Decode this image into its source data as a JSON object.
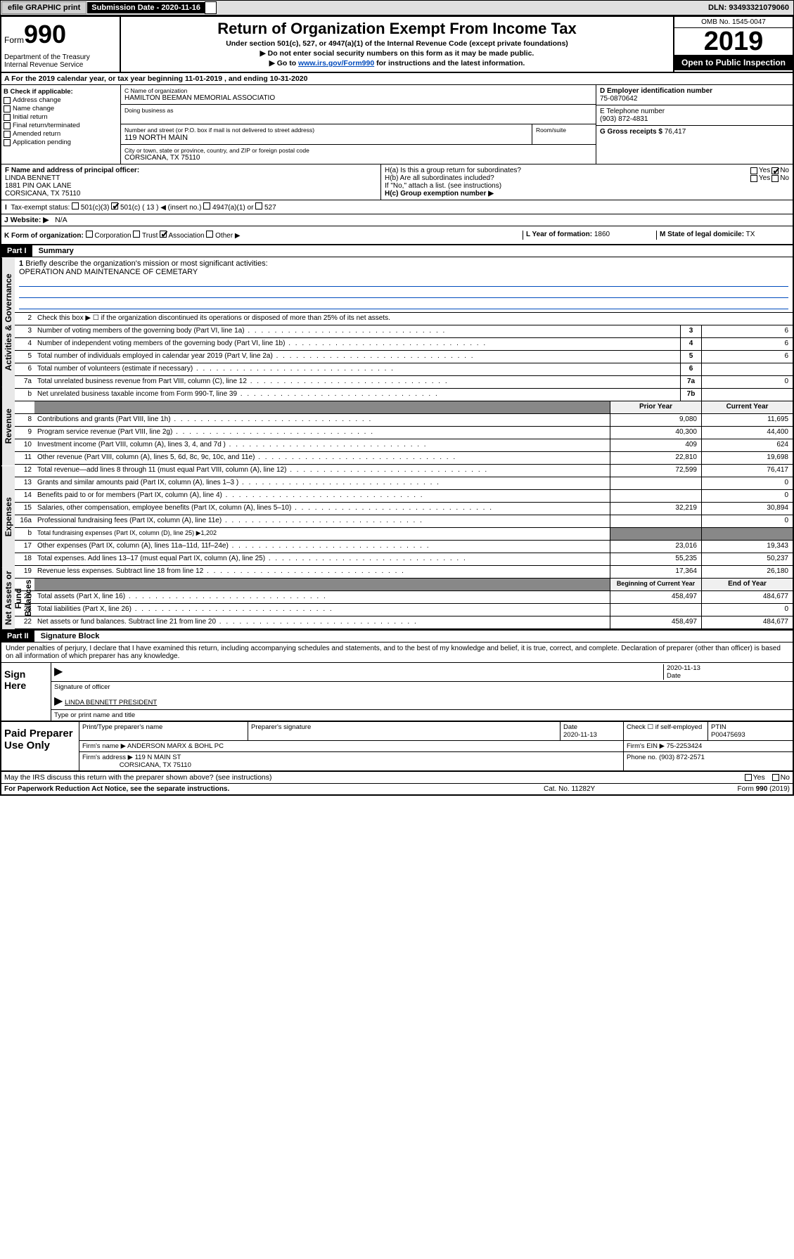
{
  "topbar": {
    "efile": "efile GRAPHIC print",
    "sub_date_label": "Submission Date - 2020-11-16",
    "dln": "DLN: 93493321079060"
  },
  "header": {
    "form_label": "Form",
    "form_number": "990",
    "dept": "Department of the Treasury\nInternal Revenue Service",
    "title": "Return of Organization Exempt From Income Tax",
    "subtitle1": "Under section 501(c), 527, or 4947(a)(1) of the Internal Revenue Code (except private foundations)",
    "subtitle2": "▶ Do not enter social security numbers on this form as it may be made public.",
    "subtitle3_pre": "▶ Go to ",
    "subtitle3_link": "www.irs.gov/Form990",
    "subtitle3_post": " for instructions and the latest information.",
    "omb": "OMB No. 1545-0047",
    "year": "2019",
    "open_public": "Open to Public Inspection"
  },
  "rowA": "A For the 2019 calendar year, or tax year beginning 11-01-2019     , and ending 10-31-2020",
  "sectionB": {
    "label": "B Check if applicable:",
    "items": [
      "Address change",
      "Name change",
      "Initial return",
      "Final return/terminated",
      "Amended return",
      "Application pending"
    ]
  },
  "sectionC": {
    "name_label": "C Name of organization",
    "name": "HAMILTON BEEMAN MEMORIAL ASSOCIATIO",
    "dba_label": "Doing business as",
    "addr_label": "Number and street (or P.O. box if mail is not delivered to street address)",
    "room_label": "Room/suite",
    "addr": "119 NORTH MAIN",
    "city_label": "City or town, state or province, country, and ZIP or foreign postal code",
    "city": "CORSICANA, TX  75110"
  },
  "sectionD": {
    "label": "D Employer identification number",
    "value": "75-0870642"
  },
  "sectionE": {
    "label": "E Telephone number",
    "value": "(903) 872-4831"
  },
  "sectionG": {
    "label": "G Gross receipts $",
    "value": "76,417"
  },
  "sectionF": {
    "label": "F Name and address of principal officer:",
    "name": "LINDA BENNETT",
    "addr1": "1881 PIN OAK LANE",
    "addr2": "CORSICANA, TX  75110"
  },
  "sectionH": {
    "ha": "H(a)  Is this a group return for subordinates?",
    "hb": "H(b)  Are all subordinates included?",
    "hb_note": "If \"No,\" attach a list. (see instructions)",
    "hc": "H(c)  Group exemption number ▶"
  },
  "rowI": {
    "label": "Tax-exempt status:",
    "opt1": "501(c)(3)",
    "opt2": "501(c) ( 13 ) ◀ (insert no.)",
    "opt3": "4947(a)(1) or",
    "opt4": "527"
  },
  "rowJ": {
    "label": "J  Website: ▶",
    "value": "N/A"
  },
  "rowK": {
    "label": "K Form of organization:",
    "opts": [
      "Corporation",
      "Trust",
      "Association",
      "Other ▶"
    ],
    "checked": 2
  },
  "rowL": {
    "label": "L Year of formation:",
    "value": "1860"
  },
  "rowM": {
    "label": "M State of legal domicile:",
    "value": "TX"
  },
  "partI": {
    "header": "Part I",
    "title": "Summary"
  },
  "summary": {
    "sections": [
      {
        "label": "Activities & Governance",
        "rows_idx": [
          0,
          1,
          2,
          3,
          4,
          5,
          6,
          7
        ]
      },
      {
        "label": "Revenue",
        "rows_idx": [
          8,
          9,
          10,
          11,
          12,
          13
        ]
      },
      {
        "label": "Expenses",
        "rows_idx": [
          14,
          15,
          16,
          17,
          18,
          19,
          20
        ]
      },
      {
        "label": "Net Assets or Fund Balances",
        "rows_idx": [
          21,
          22,
          23,
          24
        ]
      }
    ],
    "q1": {
      "num": "1",
      "text": "Briefly describe the organization's mission or most significant activities:",
      "answer": "OPERATION AND MAINTENANCE OF CEMETARY"
    },
    "q2": {
      "num": "2",
      "text": "Check this box ▶ ☐ if the organization discontinued its operations or disposed of more than 25% of its net assets."
    },
    "lines": [
      {
        "num": "3",
        "text": "Number of voting members of the governing body (Part VI, line 1a)",
        "box": "3",
        "val": "6"
      },
      {
        "num": "4",
        "text": "Number of independent voting members of the governing body (Part VI, line 1b)",
        "box": "4",
        "val": "6"
      },
      {
        "num": "5",
        "text": "Total number of individuals employed in calendar year 2019 (Part V, line 2a)",
        "box": "5",
        "val": "6"
      },
      {
        "num": "6",
        "text": "Total number of volunteers (estimate if necessary)",
        "box": "6",
        "val": ""
      },
      {
        "num": "7a",
        "text": "Total unrelated business revenue from Part VIII, column (C), line 12",
        "box": "7a",
        "val": "0"
      },
      {
        "num": "b",
        "text": "Net unrelated business taxable income from Form 990-T, line 39",
        "box": "7b",
        "val": ""
      }
    ],
    "header_prior": "Prior Year",
    "header_current": "Current Year",
    "revenue": [
      {
        "num": "8",
        "text": "Contributions and grants (Part VIII, line 1h)",
        "prior": "9,080",
        "curr": "11,695"
      },
      {
        "num": "9",
        "text": "Program service revenue (Part VIII, line 2g)",
        "prior": "40,300",
        "curr": "44,400"
      },
      {
        "num": "10",
        "text": "Investment income (Part VIII, column (A), lines 3, 4, and 7d )",
        "prior": "409",
        "curr": "624"
      },
      {
        "num": "11",
        "text": "Other revenue (Part VIII, column (A), lines 5, 6d, 8c, 9c, 10c, and 11e)",
        "prior": "22,810",
        "curr": "19,698"
      },
      {
        "num": "12",
        "text": "Total revenue—add lines 8 through 11 (must equal Part VIII, column (A), line 12)",
        "prior": "72,599",
        "curr": "76,417"
      }
    ],
    "expenses": [
      {
        "num": "13",
        "text": "Grants and similar amounts paid (Part IX, column (A), lines 1–3 )",
        "prior": "",
        "curr": "0"
      },
      {
        "num": "14",
        "text": "Benefits paid to or for members (Part IX, column (A), line 4)",
        "prior": "",
        "curr": "0"
      },
      {
        "num": "15",
        "text": "Salaries, other compensation, employee benefits (Part IX, column (A), lines 5–10)",
        "prior": "32,219",
        "curr": "30,894"
      },
      {
        "num": "16a",
        "text": "Professional fundraising fees (Part IX, column (A), line 11e)",
        "prior": "",
        "curr": "0"
      },
      {
        "num": "b",
        "text": "Total fundraising expenses (Part IX, column (D), line 25) ▶1,202",
        "prior": null,
        "curr": null,
        "shaded": true
      },
      {
        "num": "17",
        "text": "Other expenses (Part IX, column (A), lines 11a–11d, 11f–24e)",
        "prior": "23,016",
        "curr": "19,343"
      },
      {
        "num": "18",
        "text": "Total expenses. Add lines 13–17 (must equal Part IX, column (A), line 25)",
        "prior": "55,235",
        "curr": "50,237"
      },
      {
        "num": "19",
        "text": "Revenue less expenses. Subtract line 18 from line 12",
        "prior": "17,364",
        "curr": "26,180"
      }
    ],
    "header_begin": "Beginning of Current Year",
    "header_end": "End of Year",
    "netassets": [
      {
        "num": "20",
        "text": "Total assets (Part X, line 16)",
        "prior": "458,497",
        "curr": "484,677"
      },
      {
        "num": "21",
        "text": "Total liabilities (Part X, line 26)",
        "prior": "",
        "curr": "0"
      },
      {
        "num": "22",
        "text": "Net assets or fund balances. Subtract line 21 from line 20",
        "prior": "458,497",
        "curr": "484,677"
      }
    ]
  },
  "partII": {
    "header": "Part II",
    "title": "Signature Block"
  },
  "perjury": "Under penalties of perjury, I declare that I have examined this return, including accompanying schedules and statements, and to the best of my knowledge and belief, it is true, correct, and complete. Declaration of preparer (other than officer) is based on all information of which preparer has any knowledge.",
  "sign": {
    "label": "Sign Here",
    "sig_officer": "Signature of officer",
    "date": "2020-11-13",
    "date_label": "Date",
    "name": "LINDA BENNETT PRESIDENT",
    "name_label": "Type or print name and title"
  },
  "paid": {
    "label": "Paid Preparer Use Only",
    "headers": [
      "Print/Type preparer's name",
      "Preparer's signature",
      "Date",
      "",
      "PTIN"
    ],
    "row1": {
      "name": "",
      "sig": "",
      "date": "2020-11-13",
      "check": "Check ☐ if self-employed",
      "ptin": "P00475693"
    },
    "firm_name_label": "Firm's name    ▶",
    "firm_name": "ANDERSON MARX & BOHL PC",
    "firm_ein_label": "Firm's EIN ▶",
    "firm_ein": "75-2253424",
    "firm_addr_label": "Firm's address ▶",
    "firm_addr": "119 N MAIN ST",
    "firm_city": "CORSICANA, TX  75110",
    "phone_label": "Phone no.",
    "phone": "(903) 872-2571"
  },
  "discuss": "May the IRS discuss this return with the preparer shown above? (see instructions)",
  "footer": {
    "left": "For Paperwork Reduction Act Notice, see the separate instructions.",
    "mid": "Cat. No. 11282Y",
    "right": "Form 990 (2019)"
  },
  "yes": "Yes",
  "no": "No"
}
